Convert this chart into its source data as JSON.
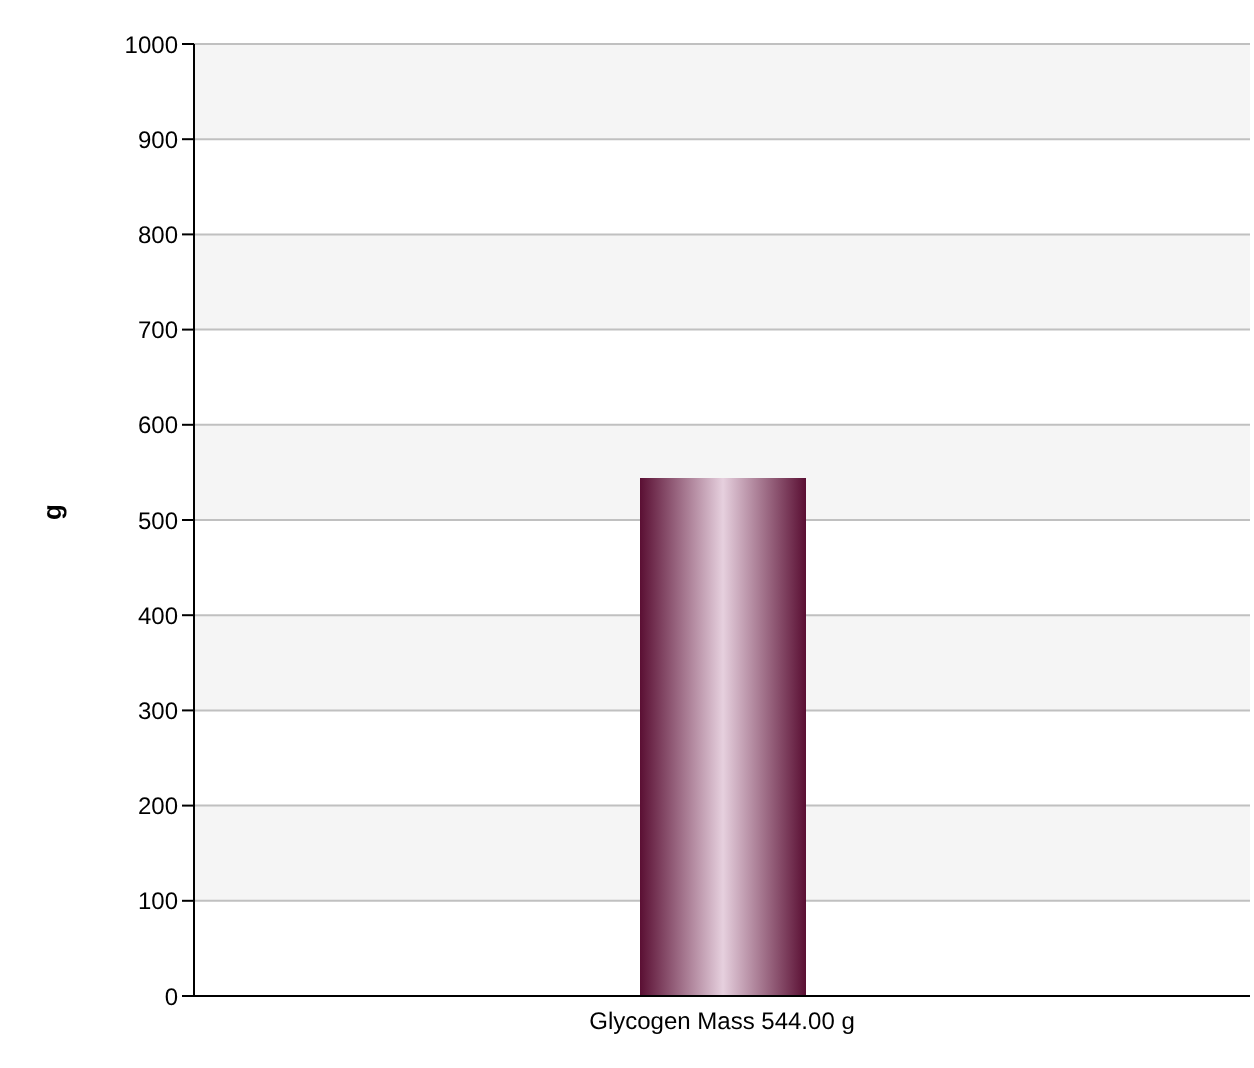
{
  "chart_data": {
    "type": "bar",
    "ylabel": "g",
    "categories": [
      "Glycogen Mass 544.00 g"
    ],
    "values": [
      544
    ],
    "color": "#5a0f33",
    "ylim": [
      0,
      1000
    ],
    "yticks": [
      0,
      100,
      200,
      300,
      400,
      500,
      600,
      700,
      800,
      900,
      1000
    ],
    "grid": "y",
    "legend": false
  }
}
